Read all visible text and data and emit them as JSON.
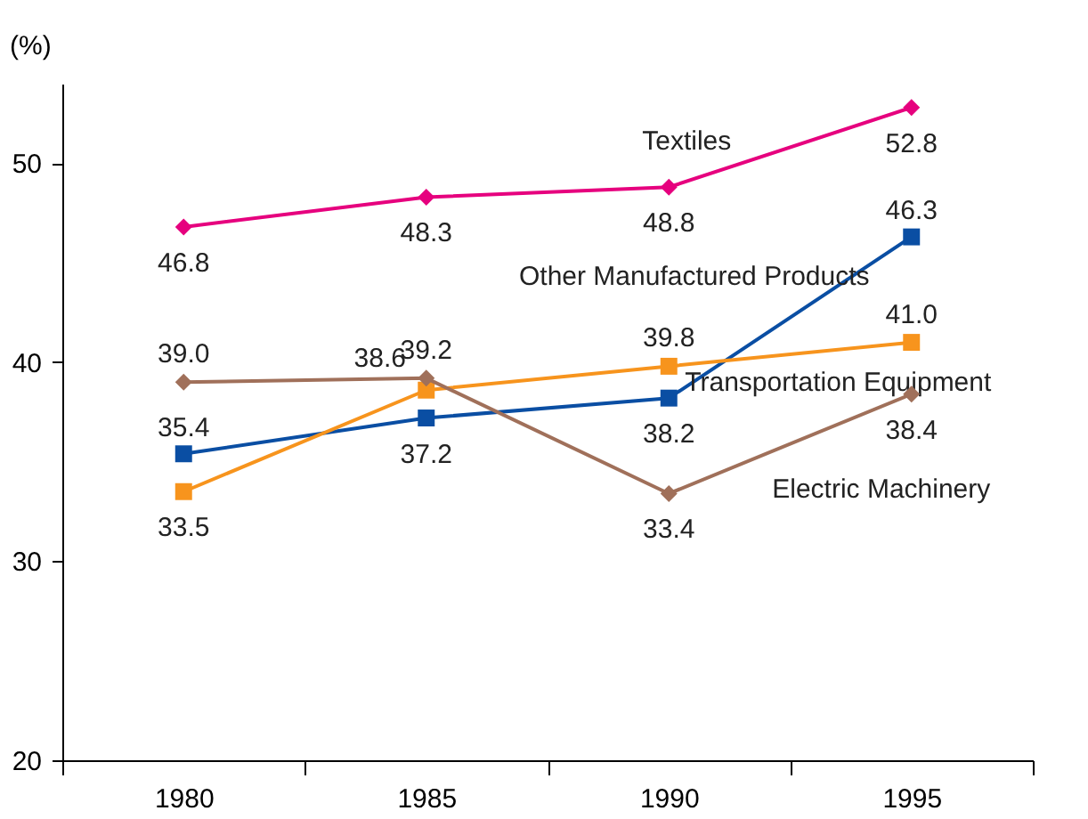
{
  "chart_data": {
    "type": "line",
    "ylabel": "(%)",
    "categories": [
      "1980",
      "1985",
      "1990",
      "1995"
    ],
    "series": [
      {
        "name": "Textiles",
        "color": "#e6007e",
        "marker": "diamond",
        "values": [
          46.8,
          48.3,
          48.8,
          52.8
        ],
        "value_labels": [
          "46.8",
          "48.3",
          "48.8",
          "52.8"
        ]
      },
      {
        "name": "Other Manufactured Products",
        "color": "#0a4ea3",
        "marker": "square",
        "values": [
          35.4,
          37.2,
          38.2,
          46.3
        ],
        "value_labels": [
          "35.4",
          "37.2",
          "38.2",
          "46.3"
        ]
      },
      {
        "name": "Transportation Equipment",
        "color": "#f7941d",
        "marker": "square",
        "values": [
          33.5,
          38.6,
          39.8,
          41.0
        ],
        "value_labels": [
          "33.5",
          "38.6",
          "39.8",
          "41.0"
        ]
      },
      {
        "name": "Electric Machinery",
        "color": "#a0705a",
        "marker": "diamond",
        "values": [
          39.0,
          39.2,
          33.4,
          38.4
        ],
        "value_labels": [
          "39.0",
          "39.2",
          "33.4",
          "38.4"
        ]
      }
    ],
    "ylim": [
      20,
      54
    ],
    "yticks": [
      20,
      30,
      40,
      50
    ],
    "grid": false,
    "legend": false,
    "line_style": "solid"
  }
}
